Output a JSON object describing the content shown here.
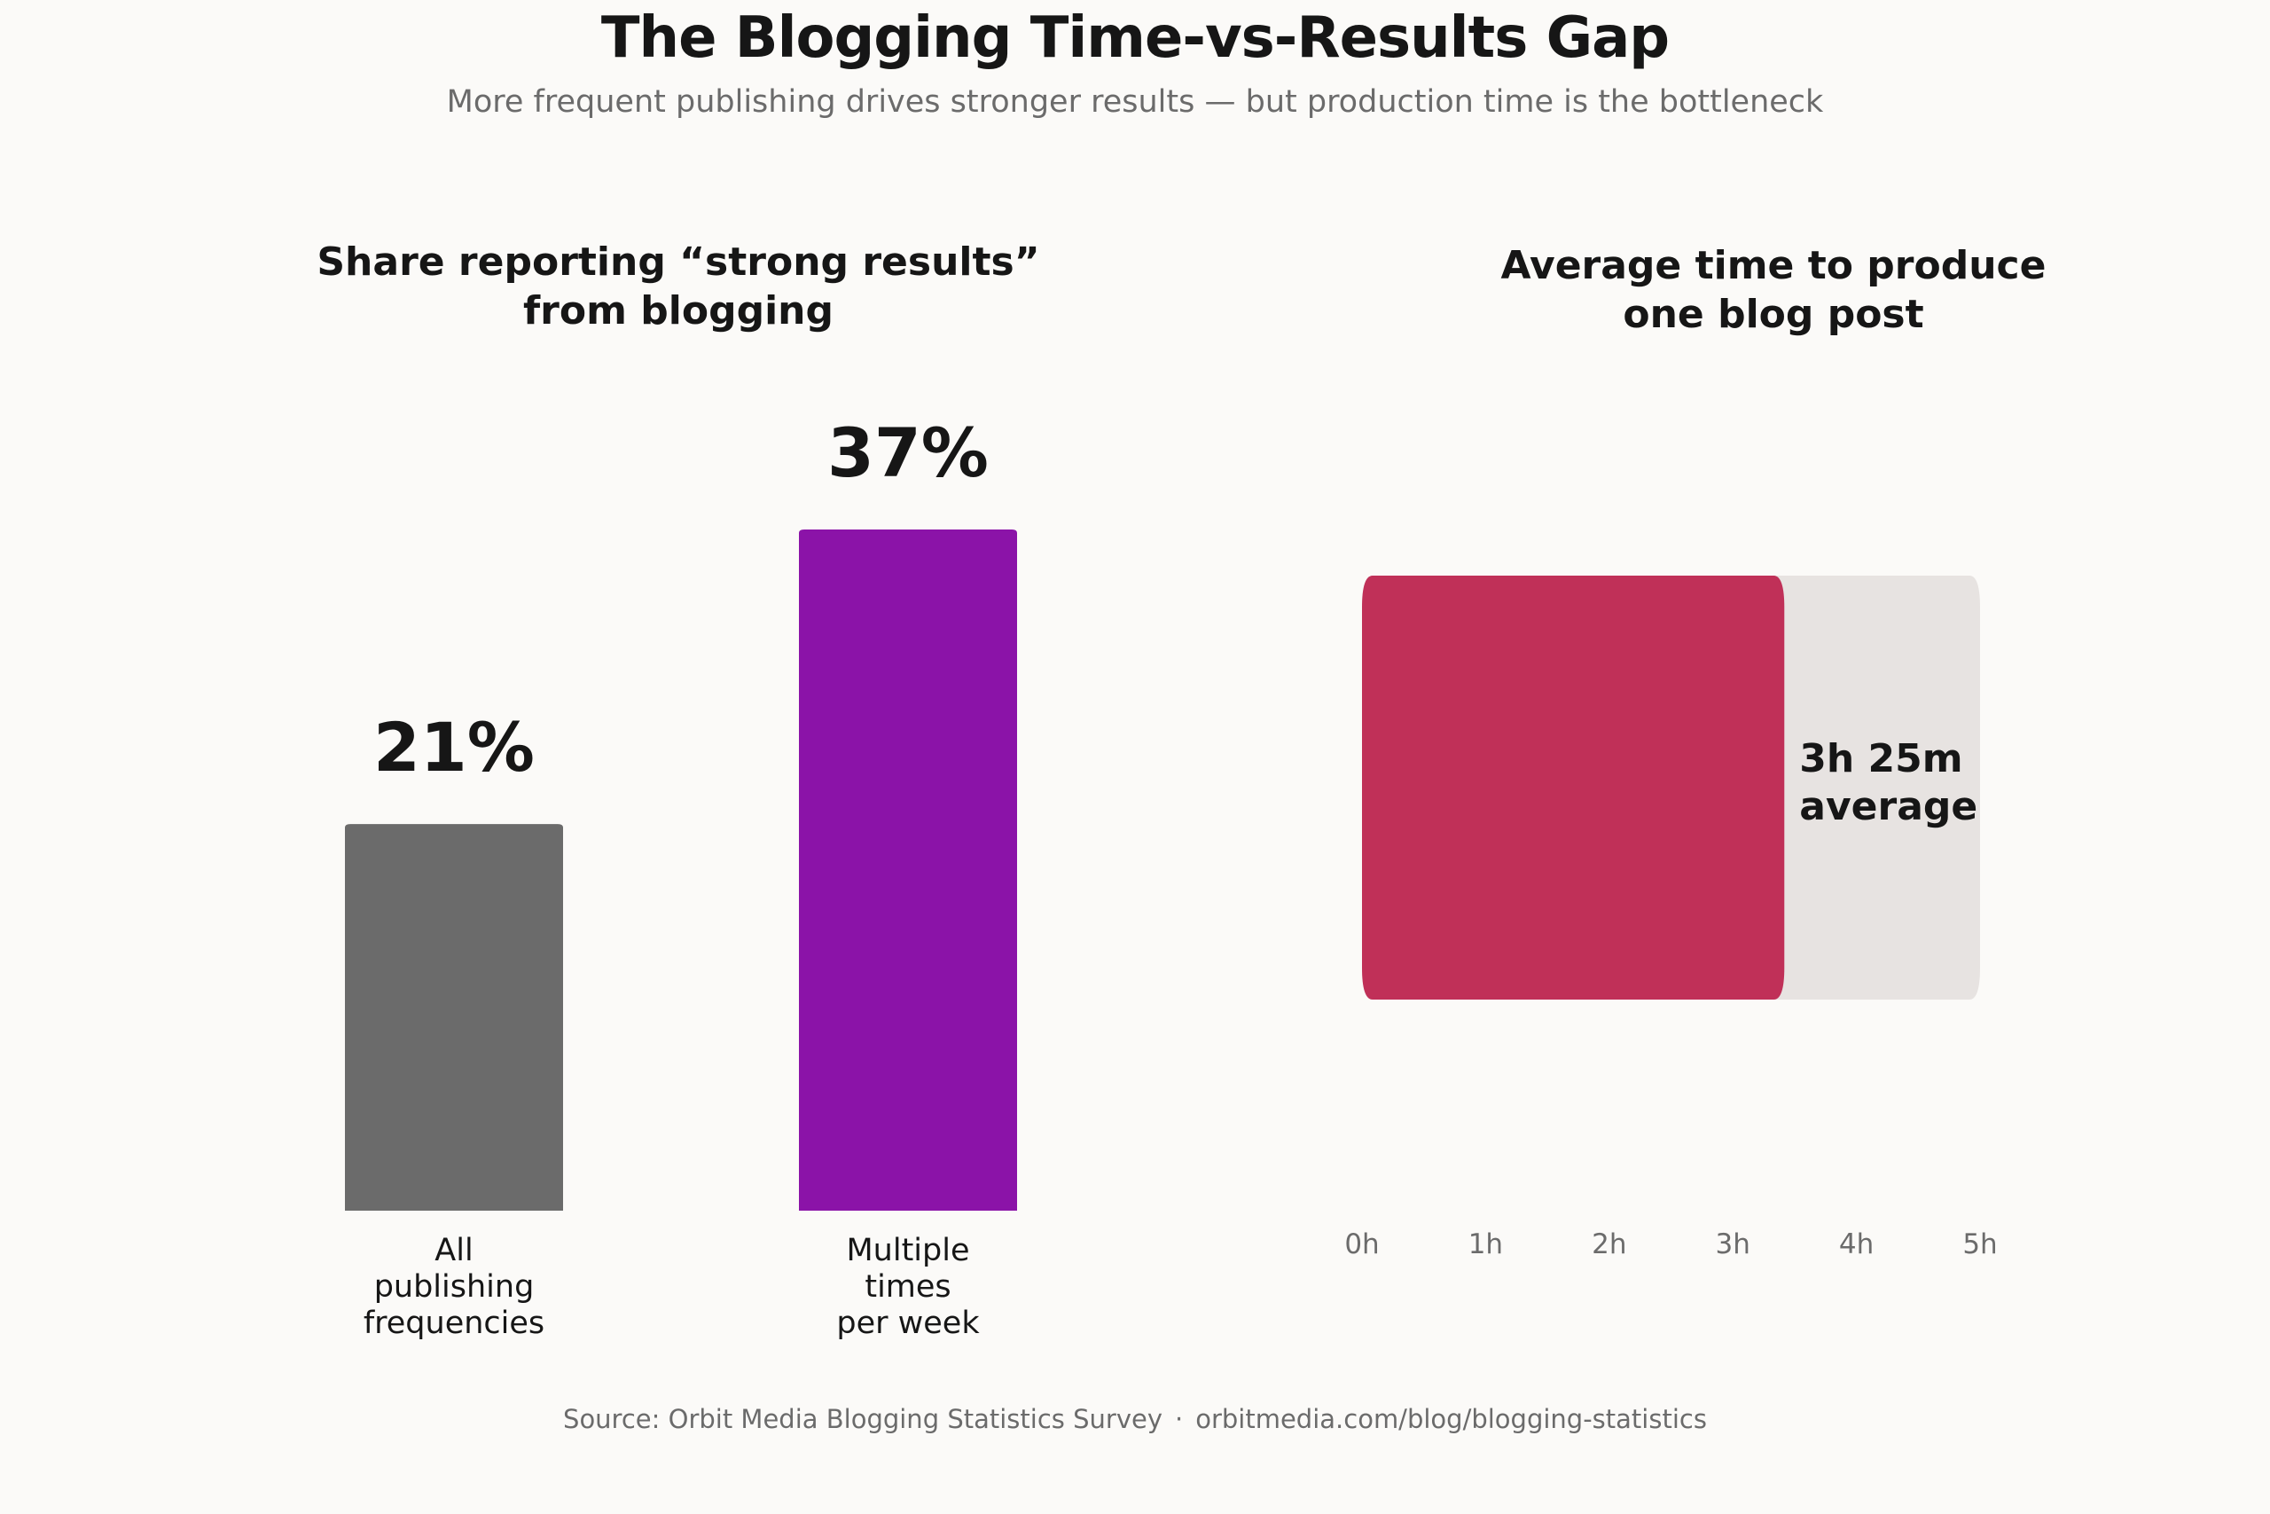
{
  "title": "The Blogging Time-vs-Results Gap",
  "subtitle": "More frequent publishing drives stronger results — but production time is the bottleneck",
  "colors": {
    "background": "#fbfaf8",
    "bar_all": "#6b6b6b",
    "bar_multiple": "#8b13a8",
    "time_fill": "#c03058",
    "time_track": "#e7e3e1",
    "muted_text": "#6b6b6b"
  },
  "chart_data": [
    {
      "type": "bar",
      "title_lines": [
        "Share reporting “strong results”",
        "from blogging"
      ],
      "categories": [
        [
          "All",
          "publishing",
          "frequencies"
        ],
        [
          "Multiple",
          "times",
          "per week"
        ]
      ],
      "values": [
        21,
        37
      ],
      "value_labels": [
        "21%",
        "37%"
      ],
      "ylim": [
        0,
        37
      ],
      "grid": false
    },
    {
      "type": "bar",
      "orientation": "horizontal",
      "title_lines": [
        "Average time to produce",
        "one blog post"
      ],
      "value_hours": 3.4167,
      "value_label_lines": [
        "3h 25m",
        "average"
      ],
      "xlim": [
        0,
        5
      ],
      "x_ticks": [
        "0h",
        "1h",
        "2h",
        "3h",
        "4h",
        "5h"
      ],
      "grid": false
    }
  ],
  "source": {
    "text": "Source: Orbit Media Blogging Statistics Survey",
    "separator": "·",
    "url": "orbitmedia.com/blog/blogging-statistics"
  }
}
